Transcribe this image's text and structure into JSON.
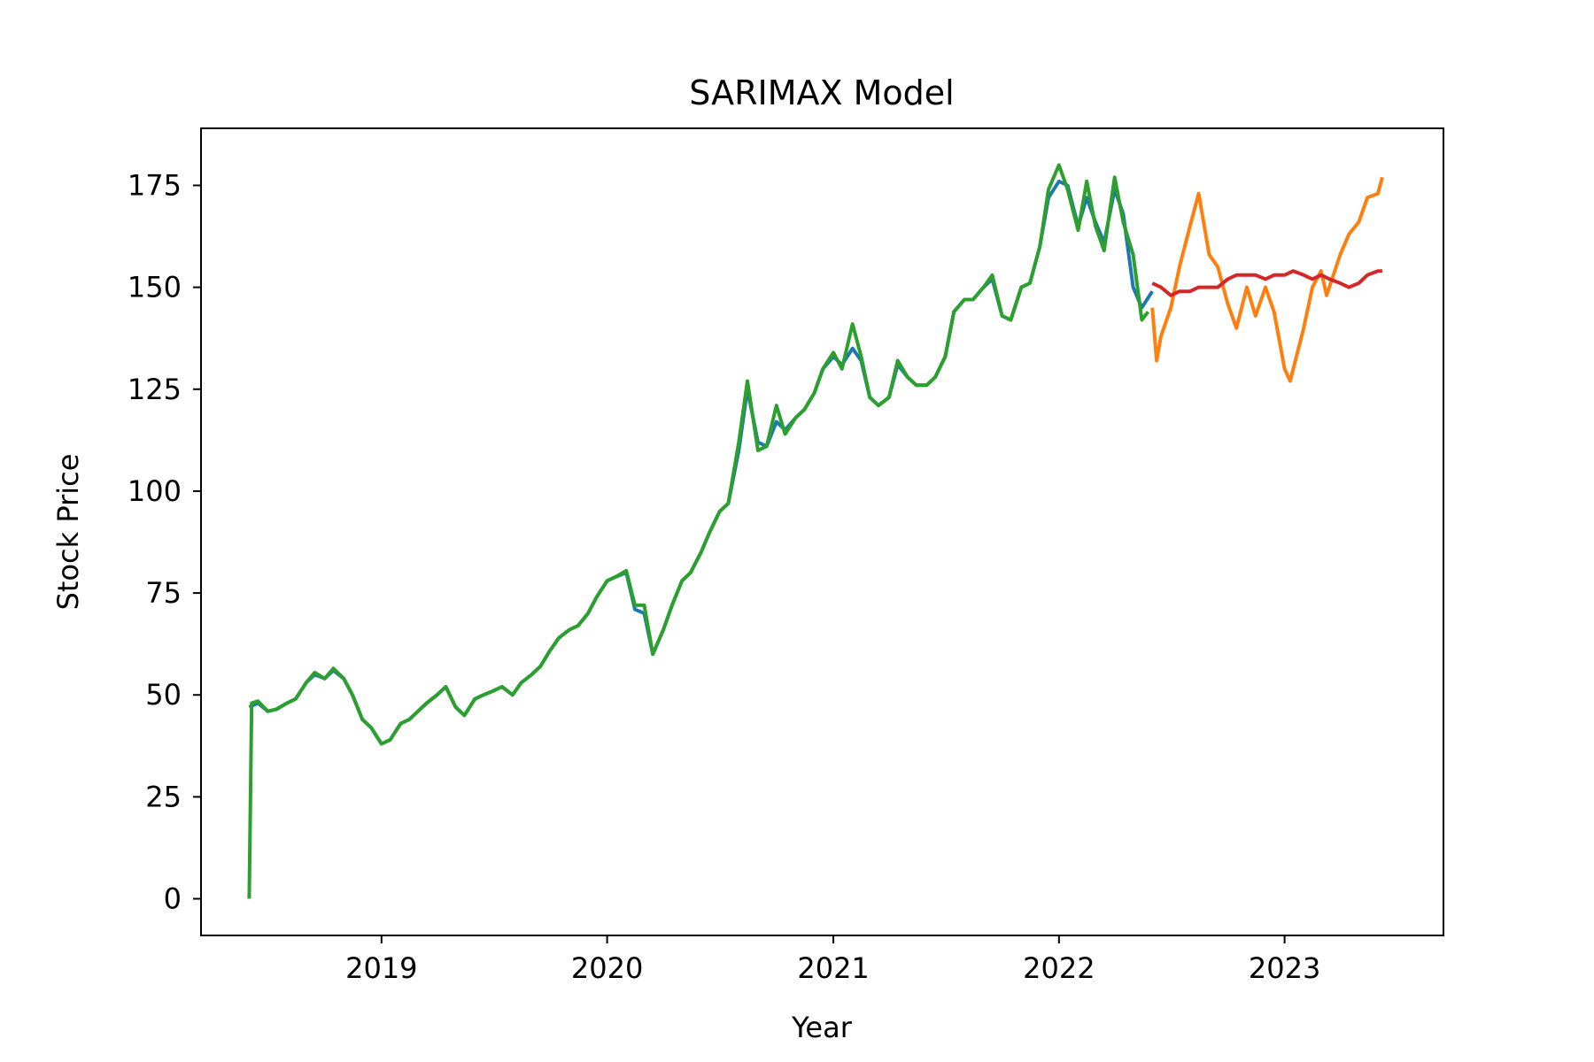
{
  "chart_data": {
    "type": "line",
    "title": "SARIMAX Model",
    "xlabel": "Year",
    "ylabel": "Stock Price",
    "xlim": [
      "2018-03-15",
      "2023-09-15"
    ],
    "ylim": [
      -9,
      189
    ],
    "x_ticks": [
      {
        "label": "2019",
        "date": "2019-01-01"
      },
      {
        "label": "2020",
        "date": "2020-01-01"
      },
      {
        "label": "2021",
        "date": "2021-01-01"
      },
      {
        "label": "2022",
        "date": "2022-01-01"
      },
      {
        "label": "2023",
        "date": "2023-01-01"
      }
    ],
    "y_ticks": [
      0,
      25,
      50,
      75,
      100,
      125,
      150,
      175
    ],
    "grid": false,
    "legend": "none",
    "series": [
      {
        "color": "#1f77b4",
        "points": [
          [
            "2018-06-01",
            47
          ],
          [
            "2018-06-15",
            48
          ],
          [
            "2018-07-01",
            46
          ],
          [
            "2018-07-15",
            46.5
          ],
          [
            "2018-08-01",
            48
          ],
          [
            "2018-08-15",
            49
          ],
          [
            "2018-09-01",
            53
          ],
          [
            "2018-09-15",
            55
          ],
          [
            "2018-10-01",
            54
          ],
          [
            "2018-10-15",
            56
          ],
          [
            "2018-11-01",
            54
          ],
          [
            "2018-11-15",
            50
          ],
          [
            "2018-12-01",
            44
          ],
          [
            "2018-12-15",
            42
          ],
          [
            "2019-01-01",
            38
          ],
          [
            "2019-01-15",
            39
          ],
          [
            "2019-02-01",
            43
          ],
          [
            "2019-02-15",
            44
          ],
          [
            "2019-03-01",
            46
          ],
          [
            "2019-03-15",
            48
          ],
          [
            "2019-04-01",
            50
          ],
          [
            "2019-04-15",
            52
          ],
          [
            "2019-05-01",
            47
          ],
          [
            "2019-05-15",
            45
          ],
          [
            "2019-06-01",
            49
          ],
          [
            "2019-06-15",
            50
          ],
          [
            "2019-07-01",
            51
          ],
          [
            "2019-07-15",
            52
          ],
          [
            "2019-08-01",
            50
          ],
          [
            "2019-08-15",
            53
          ],
          [
            "2019-09-01",
            55
          ],
          [
            "2019-09-15",
            57
          ],
          [
            "2019-10-01",
            61
          ],
          [
            "2019-10-15",
            64
          ],
          [
            "2019-11-01",
            66
          ],
          [
            "2019-11-15",
            67
          ],
          [
            "2019-12-01",
            70
          ],
          [
            "2019-12-15",
            74
          ],
          [
            "2020-01-01",
            78
          ],
          [
            "2020-01-15",
            79
          ],
          [
            "2020-02-01",
            80
          ],
          [
            "2020-02-15",
            71
          ],
          [
            "2020-03-01",
            70
          ],
          [
            "2020-03-15",
            60
          ],
          [
            "2020-04-01",
            66
          ],
          [
            "2020-04-15",
            72
          ],
          [
            "2020-05-01",
            78
          ],
          [
            "2020-05-15",
            80
          ],
          [
            "2020-06-01",
            85
          ],
          [
            "2020-06-15",
            90
          ],
          [
            "2020-07-01",
            95
          ],
          [
            "2020-07-15",
            97
          ],
          [
            "2020-08-01",
            110
          ],
          [
            "2020-08-15",
            125
          ],
          [
            "2020-09-01",
            112
          ],
          [
            "2020-09-15",
            111
          ],
          [
            "2020-10-01",
            117
          ],
          [
            "2020-10-15",
            115
          ],
          [
            "2020-11-01",
            118
          ],
          [
            "2020-11-15",
            120
          ],
          [
            "2020-12-01",
            124
          ],
          [
            "2020-12-15",
            130
          ],
          [
            "2021-01-01",
            133
          ],
          [
            "2021-01-15",
            131
          ],
          [
            "2021-02-01",
            135
          ],
          [
            "2021-02-15",
            132
          ],
          [
            "2021-03-01",
            123
          ],
          [
            "2021-03-15",
            121
          ],
          [
            "2021-04-01",
            123
          ],
          [
            "2021-04-15",
            131
          ],
          [
            "2021-05-01",
            128
          ],
          [
            "2021-05-15",
            126
          ],
          [
            "2021-06-01",
            126
          ],
          [
            "2021-06-15",
            128
          ],
          [
            "2021-07-01",
            133
          ],
          [
            "2021-07-15",
            144
          ],
          [
            "2021-08-01",
            147
          ],
          [
            "2021-08-15",
            147
          ],
          [
            "2021-09-01",
            150
          ],
          [
            "2021-09-15",
            152
          ],
          [
            "2021-10-01",
            143
          ],
          [
            "2021-10-15",
            142
          ],
          [
            "2021-11-01",
            150
          ],
          [
            "2021-11-15",
            151
          ],
          [
            "2021-12-01",
            160
          ],
          [
            "2021-12-15",
            172
          ],
          [
            "2022-01-01",
            176
          ],
          [
            "2022-01-15",
            175
          ],
          [
            "2022-02-01",
            165
          ],
          [
            "2022-02-15",
            172
          ],
          [
            "2022-03-01",
            166
          ],
          [
            "2022-03-15",
            161
          ],
          [
            "2022-04-01",
            174
          ],
          [
            "2022-04-15",
            168
          ],
          [
            "2022-05-01",
            150
          ],
          [
            "2022-05-15",
            145
          ],
          [
            "2022-06-01",
            149
          ]
        ]
      },
      {
        "color": "#2ca02c",
        "points": [
          [
            "2018-06-01",
            0
          ],
          [
            "2018-06-05",
            48
          ],
          [
            "2018-06-15",
            48.5
          ],
          [
            "2018-07-01",
            46
          ],
          [
            "2018-07-15",
            46.5
          ],
          [
            "2018-08-01",
            48
          ],
          [
            "2018-08-15",
            49
          ],
          [
            "2018-09-01",
            53
          ],
          [
            "2018-09-15",
            55.5
          ],
          [
            "2018-10-01",
            54
          ],
          [
            "2018-10-15",
            56.5
          ],
          [
            "2018-11-01",
            54
          ],
          [
            "2018-11-15",
            50
          ],
          [
            "2018-12-01",
            44
          ],
          [
            "2018-12-15",
            42
          ],
          [
            "2019-01-01",
            38
          ],
          [
            "2019-01-15",
            39
          ],
          [
            "2019-02-01",
            43
          ],
          [
            "2019-02-15",
            44
          ],
          [
            "2019-03-01",
            46
          ],
          [
            "2019-03-15",
            48
          ],
          [
            "2019-04-01",
            50
          ],
          [
            "2019-04-15",
            52
          ],
          [
            "2019-05-01",
            47
          ],
          [
            "2019-05-15",
            45
          ],
          [
            "2019-06-01",
            49
          ],
          [
            "2019-06-15",
            50
          ],
          [
            "2019-07-01",
            51
          ],
          [
            "2019-07-15",
            52
          ],
          [
            "2019-08-01",
            50
          ],
          [
            "2019-08-15",
            53
          ],
          [
            "2019-09-01",
            55
          ],
          [
            "2019-09-15",
            57
          ],
          [
            "2019-10-01",
            61
          ],
          [
            "2019-10-15",
            64
          ],
          [
            "2019-11-01",
            66
          ],
          [
            "2019-11-15",
            67
          ],
          [
            "2019-12-01",
            70
          ],
          [
            "2019-12-15",
            74
          ],
          [
            "2020-01-01",
            78
          ],
          [
            "2020-01-15",
            79
          ],
          [
            "2020-02-01",
            80.5
          ],
          [
            "2020-02-15",
            72
          ],
          [
            "2020-03-01",
            72
          ],
          [
            "2020-03-15",
            60
          ],
          [
            "2020-04-01",
            66
          ],
          [
            "2020-04-15",
            72
          ],
          [
            "2020-05-01",
            78
          ],
          [
            "2020-05-15",
            80
          ],
          [
            "2020-06-01",
            85
          ],
          [
            "2020-06-15",
            90
          ],
          [
            "2020-07-01",
            95
          ],
          [
            "2020-07-15",
            97
          ],
          [
            "2020-08-01",
            112
          ],
          [
            "2020-08-15",
            127
          ],
          [
            "2020-09-01",
            110
          ],
          [
            "2020-09-15",
            111
          ],
          [
            "2020-10-01",
            121
          ],
          [
            "2020-10-15",
            114
          ],
          [
            "2020-11-01",
            118
          ],
          [
            "2020-11-15",
            120
          ],
          [
            "2020-12-01",
            124
          ],
          [
            "2020-12-15",
            130
          ],
          [
            "2021-01-01",
            134
          ],
          [
            "2021-01-15",
            130
          ],
          [
            "2021-02-01",
            141
          ],
          [
            "2021-02-15",
            133
          ],
          [
            "2021-03-01",
            123
          ],
          [
            "2021-03-15",
            121
          ],
          [
            "2021-04-01",
            123
          ],
          [
            "2021-04-15",
            132
          ],
          [
            "2021-05-01",
            128
          ],
          [
            "2021-05-15",
            126
          ],
          [
            "2021-06-01",
            126
          ],
          [
            "2021-06-15",
            128
          ],
          [
            "2021-07-01",
            133
          ],
          [
            "2021-07-15",
            144
          ],
          [
            "2021-08-01",
            147
          ],
          [
            "2021-08-15",
            147
          ],
          [
            "2021-09-01",
            150
          ],
          [
            "2021-09-15",
            153
          ],
          [
            "2021-10-01",
            143
          ],
          [
            "2021-10-15",
            142
          ],
          [
            "2021-11-01",
            150
          ],
          [
            "2021-11-15",
            151
          ],
          [
            "2021-12-01",
            160
          ],
          [
            "2021-12-15",
            174
          ],
          [
            "2022-01-01",
            180
          ],
          [
            "2022-01-15",
            174
          ],
          [
            "2022-02-01",
            164
          ],
          [
            "2022-02-15",
            176
          ],
          [
            "2022-03-01",
            165
          ],
          [
            "2022-03-15",
            159
          ],
          [
            "2022-04-01",
            177
          ],
          [
            "2022-04-15",
            166
          ],
          [
            "2022-05-01",
            158
          ],
          [
            "2022-05-15",
            142
          ],
          [
            "2022-05-25",
            144
          ]
        ]
      },
      {
        "color": "#ff7f0e",
        "points": [
          [
            "2022-06-01",
            145
          ],
          [
            "2022-06-08",
            132
          ],
          [
            "2022-06-15",
            138
          ],
          [
            "2022-07-01",
            145
          ],
          [
            "2022-07-15",
            155
          ],
          [
            "2022-08-01",
            165
          ],
          [
            "2022-08-15",
            173
          ],
          [
            "2022-09-01",
            158
          ],
          [
            "2022-09-15",
            155
          ],
          [
            "2022-10-01",
            146
          ],
          [
            "2022-10-15",
            140
          ],
          [
            "2022-11-01",
            150
          ],
          [
            "2022-11-15",
            143
          ],
          [
            "2022-12-01",
            150
          ],
          [
            "2022-12-15",
            144
          ],
          [
            "2023-01-01",
            130
          ],
          [
            "2023-01-10",
            127
          ],
          [
            "2023-02-01",
            140
          ],
          [
            "2023-02-15",
            150
          ],
          [
            "2023-03-01",
            154
          ],
          [
            "2023-03-10",
            148
          ],
          [
            "2023-04-01",
            158
          ],
          [
            "2023-04-15",
            163
          ],
          [
            "2023-05-01",
            166
          ],
          [
            "2023-05-15",
            172
          ],
          [
            "2023-06-01",
            173
          ],
          [
            "2023-06-08",
            177
          ]
        ]
      },
      {
        "color": "#d62728",
        "points": [
          [
            "2022-06-01",
            151
          ],
          [
            "2022-06-15",
            150
          ],
          [
            "2022-07-01",
            148
          ],
          [
            "2022-07-15",
            149
          ],
          [
            "2022-08-01",
            149
          ],
          [
            "2022-08-15",
            150
          ],
          [
            "2022-09-01",
            150
          ],
          [
            "2022-09-15",
            150
          ],
          [
            "2022-10-01",
            152
          ],
          [
            "2022-10-15",
            153
          ],
          [
            "2022-11-01",
            153
          ],
          [
            "2022-11-15",
            153
          ],
          [
            "2022-12-01",
            152
          ],
          [
            "2022-12-15",
            153
          ],
          [
            "2023-01-01",
            153
          ],
          [
            "2023-01-15",
            154
          ],
          [
            "2023-02-01",
            153
          ],
          [
            "2023-02-15",
            152
          ],
          [
            "2023-03-01",
            153
          ],
          [
            "2023-03-15",
            152
          ],
          [
            "2023-04-01",
            151
          ],
          [
            "2023-04-15",
            150
          ],
          [
            "2023-05-01",
            151
          ],
          [
            "2023-05-15",
            153
          ],
          [
            "2023-06-01",
            154
          ],
          [
            "2023-06-08",
            154
          ]
        ]
      }
    ]
  }
}
